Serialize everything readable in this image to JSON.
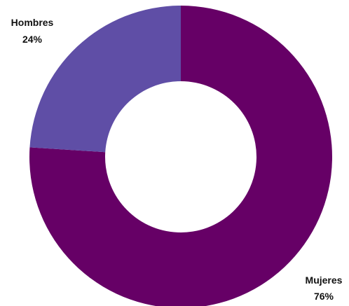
{
  "chart_data": {
    "type": "pie",
    "variant": "donut",
    "title": "",
    "slices": [
      {
        "label": "Mujeres",
        "value": 76,
        "value_label": "76%",
        "color": "#660066"
      },
      {
        "label": "Hombres",
        "value": 24,
        "value_label": "24%",
        "color": "#5f4ea6"
      }
    ],
    "start": "12 o'clock",
    "direction": "clockwise",
    "legend": "none",
    "data_labels": "outside, category name and percentage"
  }
}
